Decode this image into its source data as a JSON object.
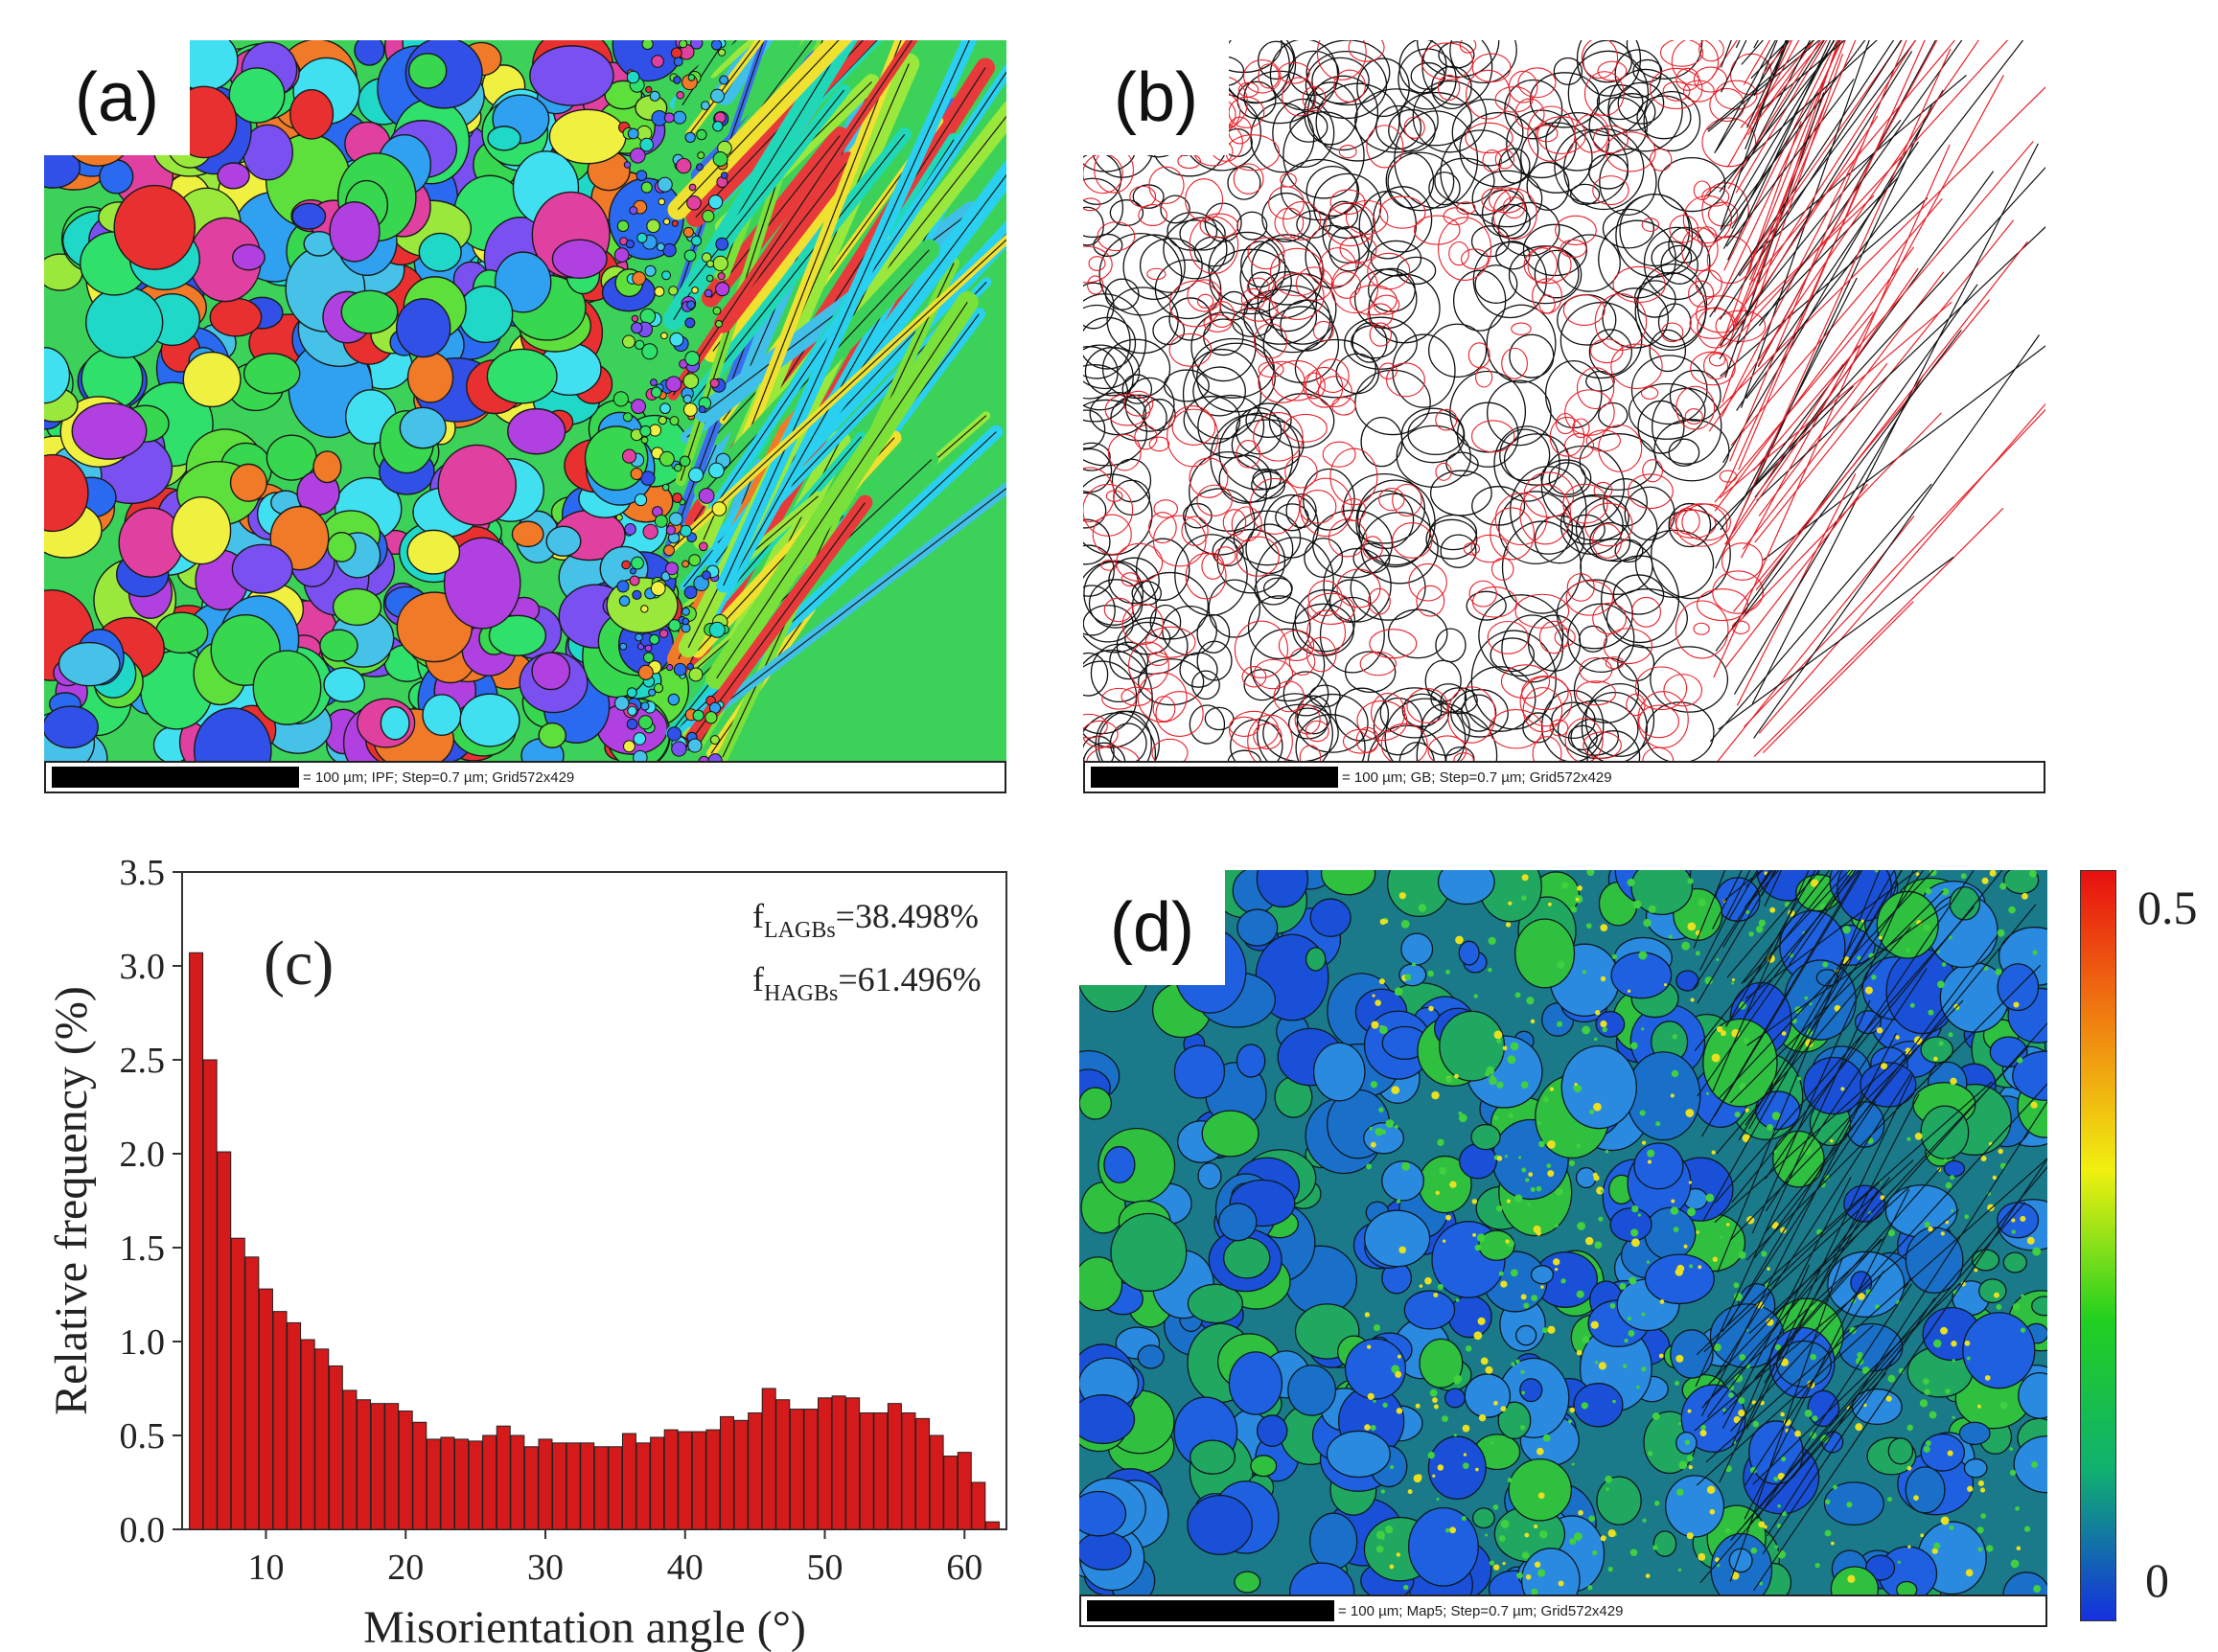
{
  "panels": {
    "a": {
      "label": "(a)",
      "scalebar": "= 100 µm; IPF; Step=0.7 µm; Grid572x429"
    },
    "b": {
      "label": "(b)",
      "scalebar": "= 100 µm; GB; Step=0.7 µm; Grid572x429",
      "colors": {
        "high_angle_boundary": "#111111",
        "low_angle_boundary": "#e8202a"
      }
    },
    "d": {
      "label": "(d)",
      "scalebar": "= 100 µm; Map5; Step=0.7 µm; Grid572x429",
      "colorbar": {
        "max_label": "0.5",
        "min_label": "0",
        "colors": [
          "#1530e0",
          "#10b070",
          "#20d020",
          "#f0f010",
          "#f08010",
          "#e81010"
        ]
      }
    }
  },
  "chart_data": {
    "type": "bar",
    "panel_label": "(c)",
    "xlabel": "Misorientation angle (°)",
    "ylabel": "Relative frequency (%)",
    "xlim": [
      4,
      63
    ],
    "ylim": [
      0,
      3.5
    ],
    "xticks": [
      "10",
      "20",
      "30",
      "40",
      "50",
      "60"
    ],
    "yticks": [
      "0.0",
      "0.5",
      "1.0",
      "1.5",
      "2.0",
      "2.5",
      "3.0",
      "3.5"
    ],
    "bar_color": "#d41a1a",
    "annotations": [
      {
        "main": "f",
        "sub": "LAGBs",
        "rest": "=38.498%"
      },
      {
        "main": "f",
        "sub": "HAGBs",
        "rest": "=61.496%"
      }
    ],
    "x": [
      5,
      6,
      7,
      8,
      9,
      10,
      11,
      12,
      13,
      14,
      15,
      16,
      17,
      18,
      19,
      20,
      21,
      22,
      23,
      24,
      25,
      26,
      27,
      28,
      29,
      30,
      31,
      32,
      33,
      34,
      35,
      36,
      37,
      38,
      39,
      40,
      41,
      42,
      43,
      44,
      45,
      46,
      47,
      48,
      49,
      50,
      51,
      52,
      53,
      54,
      55,
      56,
      57,
      58,
      59,
      60,
      61,
      62
    ],
    "values": [
      3.07,
      2.5,
      2.01,
      1.55,
      1.45,
      1.28,
      1.16,
      1.1,
      1.01,
      0.96,
      0.87,
      0.74,
      0.69,
      0.67,
      0.67,
      0.63,
      0.57,
      0.48,
      0.49,
      0.48,
      0.47,
      0.5,
      0.55,
      0.5,
      0.44,
      0.48,
      0.46,
      0.46,
      0.46,
      0.44,
      0.44,
      0.51,
      0.46,
      0.49,
      0.53,
      0.52,
      0.52,
      0.53,
      0.6,
      0.58,
      0.62,
      0.75,
      0.69,
      0.64,
      0.64,
      0.7,
      0.71,
      0.7,
      0.62,
      0.62,
      0.67,
      0.62,
      0.59,
      0.5,
      0.39,
      0.41,
      0.25,
      0.04
    ]
  }
}
